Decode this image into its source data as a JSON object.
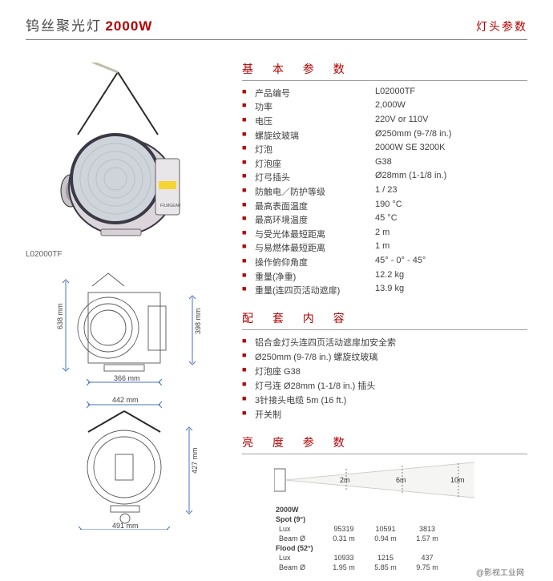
{
  "header": {
    "product_name": "钨丝聚光灯",
    "power": "2000W",
    "right_label": "灯头参数"
  },
  "model_label": "L02000TF",
  "sections": {
    "basic_title": "基 本 参 数",
    "includes_title": "配 套 内 容",
    "brightness_title": "亮 度 参 数"
  },
  "basic_params": [
    {
      "label": "产品编号",
      "value": "L02000TF"
    },
    {
      "label": "功率",
      "value": "2,000W"
    },
    {
      "label": "电压",
      "value": "220V or 110V"
    },
    {
      "label": "螺旋纹玻璃",
      "value": "Ø250mm (9-7/8 in.)"
    },
    {
      "label": "灯泡",
      "value": "2000W SE 3200K"
    },
    {
      "label": "灯泡座",
      "value": "G38"
    },
    {
      "label": "灯弓插头",
      "value": "Ø28mm (1-1/8 in.)"
    },
    {
      "label": "防触电／防护等级",
      "value": "1 / 23"
    },
    {
      "label": "最高表面温度",
      "value": "190 °C"
    },
    {
      "label": "最高环境温度",
      "value": "45 °C"
    },
    {
      "label": "与受光体最短距离",
      "value": "2 m"
    },
    {
      "label": "与易燃体最短距离",
      "value": "1 m"
    },
    {
      "label": "操作俯仰角度",
      "value": "45° - 0° - 45°"
    },
    {
      "label": "重量(净重)",
      "value": "12.2 kg"
    },
    {
      "label": "重量(连四页活动遮扉)",
      "value": "13.9 kg"
    }
  ],
  "includes": [
    "铝合金灯头连四页活动遮扉加安全索",
    "Ø250mm (9-7/8 in.) 螺旋纹玻璃",
    "灯泡座 G38",
    "灯弓连 Ø28mm (1-1/8 in.) 插头",
    "3针接头电缆 5m (16 ft.)",
    "开关制"
  ],
  "brightness": {
    "power_label": "2000W",
    "distance_cols": [
      "2m",
      "6m",
      "10m"
    ],
    "groups": [
      {
        "name": "Spot (9°)",
        "rows": [
          {
            "k": "Lux",
            "v": [
              "95319",
              "10591",
              "3813"
            ]
          },
          {
            "k": "Beam Ø",
            "v": [
              "0.31 m",
              "0.94 m",
              "1.57 m"
            ]
          }
        ]
      },
      {
        "name": "Flood (52°)",
        "rows": [
          {
            "k": "Lux",
            "v": [
              "10933",
              "1215",
              "437"
            ]
          },
          {
            "k": "Beam Ø",
            "v": [
              "1.95 m",
              "5.85 m",
              "9.75 m"
            ]
          }
        ]
      }
    ]
  },
  "drawings": {
    "side": {
      "height_mm": "638 mm",
      "depth_mm": "398 mm",
      "width_mm": "366 mm"
    },
    "front": {
      "width_mm": "442 mm",
      "width2_mm": "491 mm",
      "height_mm": "427 mm"
    }
  },
  "colors": {
    "accent": "#b30000",
    "text": "#404040",
    "rule": "#808080",
    "dim": "#4472c4",
    "light_body_dark": "#3a3945",
    "light_body_light": "#d8d5d8",
    "lens": "#cfd4da"
  },
  "footer_text": "@影视工业网"
}
